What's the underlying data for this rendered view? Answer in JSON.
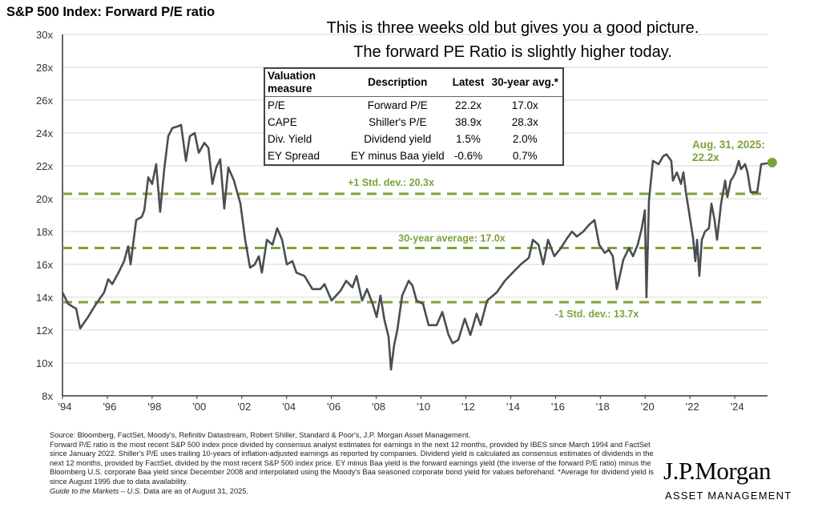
{
  "title": "S&P 500 Index: Forward P/E ratio",
  "caption": {
    "line1": "This is three weeks old but gives you a good picture.",
    "line2": "The forward PE Ratio is slightly higher today."
  },
  "table": {
    "headers": [
      "Valuation measure",
      "Description",
      "Latest",
      "30-year avg.*"
    ],
    "rows": [
      [
        "P/E",
        "Forward P/E",
        "22.2x",
        "17.0x"
      ],
      [
        "CAPE",
        "Shiller's P/E",
        "38.9x",
        "28.3x"
      ],
      [
        "Div. Yield",
        "Dividend yield",
        "1.5%",
        "2.0%"
      ],
      [
        "EY Spread",
        "EY minus Baa yield",
        "-0.6%",
        "0.7%"
      ]
    ]
  },
  "footnote": {
    "line1": "Source: Bloomberg, FactSet, Moody's, Refinitiv Datastream, Robert Shiller, Standard & Poor's, J.P. Morgan Asset Management.",
    "line2": "Forward P/E ratio is the most recent S&P 500 index price divided by consensus analyst estimates for earnings in the next 12 months, provided by IBES since March 1994 and FactSet since January 2022. Shiller's P/E uses trailing 10-years of inflation-adjusted earnings as reported by companies. Dividend yield is calculated as consensus estimates of dividends in the next 12 months, provided by FactSet, divided by the most recent S&P 500 index price. EY minus Baa yield is the forward earnings yield (the inverse of the forward P/E ratio) minus the Bloomberg U.S. corporate Baa yield since December 2008 and interpolated using the Moody's Baa seasoned corporate bond yield for values beforehand. *Average for dividend yield is since August 1995 due to data availability.",
    "guide": "Guide to the Markets – U.S.",
    "asof": " Data are as of August 31, 2025."
  },
  "logo": {
    "name": "J.P.Morgan",
    "sub": "ASSET MANAGEMENT"
  },
  "colors": {
    "line": "#4a4d52",
    "accent": "#7ba33a",
    "grid": "#e3e3e3"
  },
  "chart_data": {
    "type": "line",
    "title": "S&P 500 Index: Forward P/E ratio",
    "xlabel": "",
    "ylabel": "",
    "xlim": [
      1994,
      2025.67
    ],
    "ylim": [
      8,
      30
    ],
    "x_ticks": [
      1994,
      1996,
      1998,
      2000,
      2002,
      2004,
      2006,
      2008,
      2010,
      2012,
      2014,
      2016,
      2018,
      2020,
      2022,
      2024
    ],
    "x_tick_labels": [
      "'94",
      "'96",
      "'98",
      "'00",
      "'02",
      "'04",
      "'06",
      "'08",
      "'10",
      "'12",
      "'14",
      "'16",
      "'18",
      "'20",
      "'22",
      "'24"
    ],
    "y_ticks": [
      8,
      10,
      12,
      14,
      16,
      18,
      20,
      22,
      24,
      26,
      28,
      30
    ],
    "y_tick_labels": [
      "8x",
      "10x",
      "12x",
      "14x",
      "16x",
      "18x",
      "20x",
      "22x",
      "24x",
      "26x",
      "28x",
      "30x"
    ],
    "grid": true,
    "reference_lines": [
      {
        "value": 20.3,
        "label": "+1 Std. dev.: 20.3x"
      },
      {
        "value": 17.0,
        "label": "30-year average: 17.0x"
      },
      {
        "value": 13.7,
        "label": "-1 Std. dev.: 13.7x"
      }
    ],
    "annotation": {
      "line1": "Aug. 31, 2025:",
      "line2": "22.2x",
      "x": 2025.67,
      "y": 22.2
    },
    "series": [
      {
        "name": "Forward P/E",
        "points": [
          [
            1994.0,
            14.3
          ],
          [
            1994.25,
            13.6
          ],
          [
            1994.61,
            13.3
          ],
          [
            1994.79,
            12.1
          ],
          [
            1995.14,
            12.8
          ],
          [
            1995.5,
            13.6
          ],
          [
            1995.86,
            14.3
          ],
          [
            1996.04,
            15.1
          ],
          [
            1996.22,
            14.8
          ],
          [
            1996.5,
            15.5
          ],
          [
            1996.75,
            16.2
          ],
          [
            1996.93,
            17.1
          ],
          [
            1997.04,
            16.0
          ],
          [
            1997.29,
            18.7
          ],
          [
            1997.54,
            18.9
          ],
          [
            1997.65,
            19.3
          ],
          [
            1997.83,
            21.3
          ],
          [
            1998.0,
            20.9
          ],
          [
            1998.18,
            22.1
          ],
          [
            1998.36,
            19.2
          ],
          [
            1998.54,
            21.8
          ],
          [
            1998.72,
            23.8
          ],
          [
            1998.9,
            24.3
          ],
          [
            1999.15,
            24.4
          ],
          [
            1999.29,
            24.5
          ],
          [
            1999.51,
            22.3
          ],
          [
            1999.68,
            23.8
          ],
          [
            1999.9,
            24.0
          ],
          [
            2000.08,
            22.8
          ],
          [
            2000.33,
            23.4
          ],
          [
            2000.51,
            23.1
          ],
          [
            2000.69,
            20.9
          ],
          [
            2000.86,
            21.9
          ],
          [
            2001.04,
            22.4
          ],
          [
            2001.22,
            19.4
          ],
          [
            2001.4,
            21.9
          ],
          [
            2001.65,
            21.1
          ],
          [
            2001.94,
            19.7
          ],
          [
            2002.15,
            17.5
          ],
          [
            2002.37,
            15.8
          ],
          [
            2002.58,
            16.0
          ],
          [
            2002.76,
            16.5
          ],
          [
            2002.9,
            15.5
          ],
          [
            2003.12,
            17.5
          ],
          [
            2003.37,
            17.2
          ],
          [
            2003.58,
            18.2
          ],
          [
            2003.8,
            17.5
          ],
          [
            2004.01,
            16.0
          ],
          [
            2004.26,
            16.2
          ],
          [
            2004.44,
            15.5
          ],
          [
            2004.8,
            15.3
          ],
          [
            2005.15,
            14.5
          ],
          [
            2005.51,
            14.5
          ],
          [
            2005.69,
            14.8
          ],
          [
            2006.01,
            13.8
          ],
          [
            2006.41,
            14.4
          ],
          [
            2006.66,
            15.0
          ],
          [
            2006.94,
            14.6
          ],
          [
            2007.12,
            15.3
          ],
          [
            2007.37,
            13.8
          ],
          [
            2007.59,
            14.5
          ],
          [
            2007.84,
            13.6
          ],
          [
            2008.02,
            12.8
          ],
          [
            2008.19,
            14.1
          ],
          [
            2008.37,
            12.6
          ],
          [
            2008.55,
            11.6
          ],
          [
            2008.66,
            9.6
          ],
          [
            2008.8,
            11.1
          ],
          [
            2008.94,
            12.0
          ],
          [
            2009.16,
            14.1
          ],
          [
            2009.45,
            15.0
          ],
          [
            2009.62,
            14.7
          ],
          [
            2009.8,
            13.8
          ],
          [
            2010.09,
            13.6
          ],
          [
            2010.34,
            12.3
          ],
          [
            2010.7,
            12.3
          ],
          [
            2010.95,
            13.1
          ],
          [
            2011.23,
            11.7
          ],
          [
            2011.41,
            11.2
          ],
          [
            2011.66,
            11.4
          ],
          [
            2011.95,
            12.7
          ],
          [
            2012.2,
            11.7
          ],
          [
            2012.48,
            13.0
          ],
          [
            2012.66,
            12.3
          ],
          [
            2012.95,
            13.8
          ],
          [
            2013.38,
            14.3
          ],
          [
            2013.74,
            15.0
          ],
          [
            2014.09,
            15.5
          ],
          [
            2014.45,
            16.0
          ],
          [
            2014.81,
            16.4
          ],
          [
            2014.99,
            17.5
          ],
          [
            2015.24,
            17.2
          ],
          [
            2015.45,
            16.0
          ],
          [
            2015.67,
            17.5
          ],
          [
            2015.95,
            16.5
          ],
          [
            2016.24,
            17.0
          ],
          [
            2016.52,
            17.6
          ],
          [
            2016.74,
            18.0
          ],
          [
            2016.95,
            17.7
          ],
          [
            2017.24,
            18.0
          ],
          [
            2017.49,
            18.4
          ],
          [
            2017.74,
            18.7
          ],
          [
            2017.95,
            17.2
          ],
          [
            2018.2,
            16.7
          ],
          [
            2018.38,
            16.9
          ],
          [
            2018.56,
            16.5
          ],
          [
            2018.74,
            14.5
          ],
          [
            2019.03,
            16.3
          ],
          [
            2019.28,
            17.0
          ],
          [
            2019.46,
            16.5
          ],
          [
            2019.67,
            17.2
          ],
          [
            2019.85,
            18.2
          ],
          [
            2019.99,
            19.3
          ],
          [
            2020.06,
            14.0
          ],
          [
            2020.17,
            19.9
          ],
          [
            2020.35,
            22.3
          ],
          [
            2020.6,
            22.1
          ],
          [
            2020.81,
            22.6
          ],
          [
            2020.96,
            22.7
          ],
          [
            2021.17,
            22.3
          ],
          [
            2021.24,
            21.1
          ],
          [
            2021.42,
            21.6
          ],
          [
            2021.6,
            20.9
          ],
          [
            2021.71,
            21.6
          ],
          [
            2021.82,
            20.4
          ],
          [
            2021.96,
            19.2
          ],
          [
            2022.14,
            17.6
          ],
          [
            2022.24,
            16.2
          ],
          [
            2022.32,
            17.5
          ],
          [
            2022.42,
            15.3
          ],
          [
            2022.53,
            17.5
          ],
          [
            2022.67,
            18.0
          ],
          [
            2022.85,
            18.2
          ],
          [
            2022.96,
            19.7
          ],
          [
            2023.1,
            18.7
          ],
          [
            2023.21,
            17.5
          ],
          [
            2023.39,
            19.7
          ],
          [
            2023.57,
            21.1
          ],
          [
            2023.67,
            20.1
          ],
          [
            2023.82,
            21.1
          ],
          [
            2023.92,
            21.3
          ],
          [
            2024.03,
            21.6
          ],
          [
            2024.18,
            22.3
          ],
          [
            2024.28,
            21.8
          ],
          [
            2024.46,
            22.1
          ],
          [
            2024.57,
            21.6
          ],
          [
            2024.71,
            20.4
          ],
          [
            2025.0,
            20.4
          ],
          [
            2025.18,
            22.1
          ],
          [
            2025.67,
            22.2
          ]
        ]
      }
    ]
  }
}
